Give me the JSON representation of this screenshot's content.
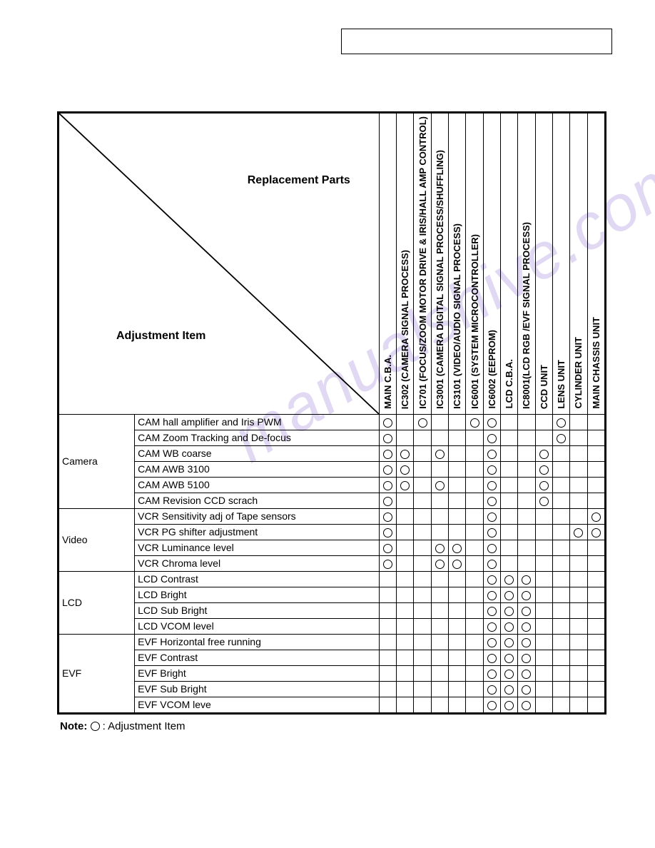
{
  "labels": {
    "replacement": "Replacement Parts",
    "adjustment": "Adjustment Item",
    "note_prefix": "Note:",
    "note_text": ": Adjustment Item"
  },
  "columns": [
    "MAIN C.B.A.",
    "IC302 (CAMERA SIGNAL PROCESS)",
    "IC701 (FOCUS/ZOOM MOTOR DRIVE & IRIS/HALL AMP CONTROL)",
    "IC3001 (CAMERA DIGITAL SIGNAL PROCESS/SHUFFLING)",
    "IC3101 (VIDEO/AUDIO SIGNAL PROCESS)",
    "IC6001 (SYSTEM MICROCONTROLLER)",
    "IC6002 (EEPROM)",
    "LCD C.B.A.",
    "IC8001(LCD RGB /EVF SIGNAL PROCESS)",
    "CCD UNIT",
    "LENS UNIT",
    "CYLINDER UNIT",
    "MAIN CHASSIS UNIT"
  ],
  "categories": [
    {
      "name": "Camera",
      "rows": [
        {
          "item": "CAM hall amplifier and Iris PWM",
          "marks": [
            1,
            0,
            1,
            0,
            0,
            1,
            1,
            0,
            0,
            0,
            1,
            0,
            0
          ]
        },
        {
          "item": "CAM Zoom Tracking and De-focus",
          "marks": [
            1,
            0,
            0,
            0,
            0,
            0,
            1,
            0,
            0,
            0,
            1,
            0,
            0
          ]
        },
        {
          "item": "CAM WB coarse",
          "marks": [
            1,
            1,
            0,
            1,
            0,
            0,
            1,
            0,
            0,
            1,
            0,
            0,
            0
          ]
        },
        {
          "item": "CAM AWB 3100",
          "marks": [
            1,
            1,
            0,
            0,
            0,
            0,
            1,
            0,
            0,
            1,
            0,
            0,
            0
          ]
        },
        {
          "item": "CAM AWB 5100",
          "marks": [
            1,
            1,
            0,
            1,
            0,
            0,
            1,
            0,
            0,
            1,
            0,
            0,
            0
          ]
        },
        {
          "item": "CAM Revision CCD scrach",
          "marks": [
            1,
            0,
            0,
            0,
            0,
            0,
            1,
            0,
            0,
            1,
            0,
            0,
            0
          ]
        }
      ]
    },
    {
      "name": "Video",
      "rows": [
        {
          "item": "VCR Sensitivity adj of Tape sensors",
          "marks": [
            1,
            0,
            0,
            0,
            0,
            0,
            1,
            0,
            0,
            0,
            0,
            0,
            1
          ]
        },
        {
          "item": "VCR PG shifter adjustment",
          "marks": [
            1,
            0,
            0,
            0,
            0,
            0,
            1,
            0,
            0,
            0,
            0,
            1,
            1
          ]
        },
        {
          "item": "VCR Luminance level",
          "marks": [
            1,
            0,
            0,
            1,
            1,
            0,
            1,
            0,
            0,
            0,
            0,
            0,
            0
          ]
        },
        {
          "item": "VCR Chroma level",
          "marks": [
            1,
            0,
            0,
            1,
            1,
            0,
            1,
            0,
            0,
            0,
            0,
            0,
            0
          ]
        }
      ]
    },
    {
      "name": "LCD",
      "rows": [
        {
          "item": "LCD Contrast",
          "marks": [
            0,
            0,
            0,
            0,
            0,
            0,
            1,
            1,
            1,
            0,
            0,
            0,
            0
          ]
        },
        {
          "item": "LCD Bright",
          "marks": [
            0,
            0,
            0,
            0,
            0,
            0,
            1,
            1,
            1,
            0,
            0,
            0,
            0
          ]
        },
        {
          "item": "LCD Sub Bright",
          "marks": [
            0,
            0,
            0,
            0,
            0,
            0,
            1,
            1,
            1,
            0,
            0,
            0,
            0
          ]
        },
        {
          "item": "LCD VCOM level",
          "marks": [
            0,
            0,
            0,
            0,
            0,
            0,
            1,
            1,
            1,
            0,
            0,
            0,
            0
          ]
        }
      ]
    },
    {
      "name": "EVF",
      "rows": [
        {
          "item": "EVF Horizontal free running",
          "marks": [
            0,
            0,
            0,
            0,
            0,
            0,
            1,
            1,
            1,
            0,
            0,
            0,
            0
          ]
        },
        {
          "item": "EVF Contrast",
          "marks": [
            0,
            0,
            0,
            0,
            0,
            0,
            1,
            1,
            1,
            0,
            0,
            0,
            0
          ]
        },
        {
          "item": "EVF Bright",
          "marks": [
            0,
            0,
            0,
            0,
            0,
            0,
            1,
            1,
            1,
            0,
            0,
            0,
            0
          ]
        },
        {
          "item": "EVF Sub Bright",
          "marks": [
            0,
            0,
            0,
            0,
            0,
            0,
            1,
            1,
            1,
            0,
            0,
            0,
            0
          ]
        },
        {
          "item": "EVF VCOM leve",
          "marks": [
            0,
            0,
            0,
            0,
            0,
            0,
            1,
            1,
            1,
            0,
            0,
            0,
            0
          ]
        }
      ]
    }
  ]
}
